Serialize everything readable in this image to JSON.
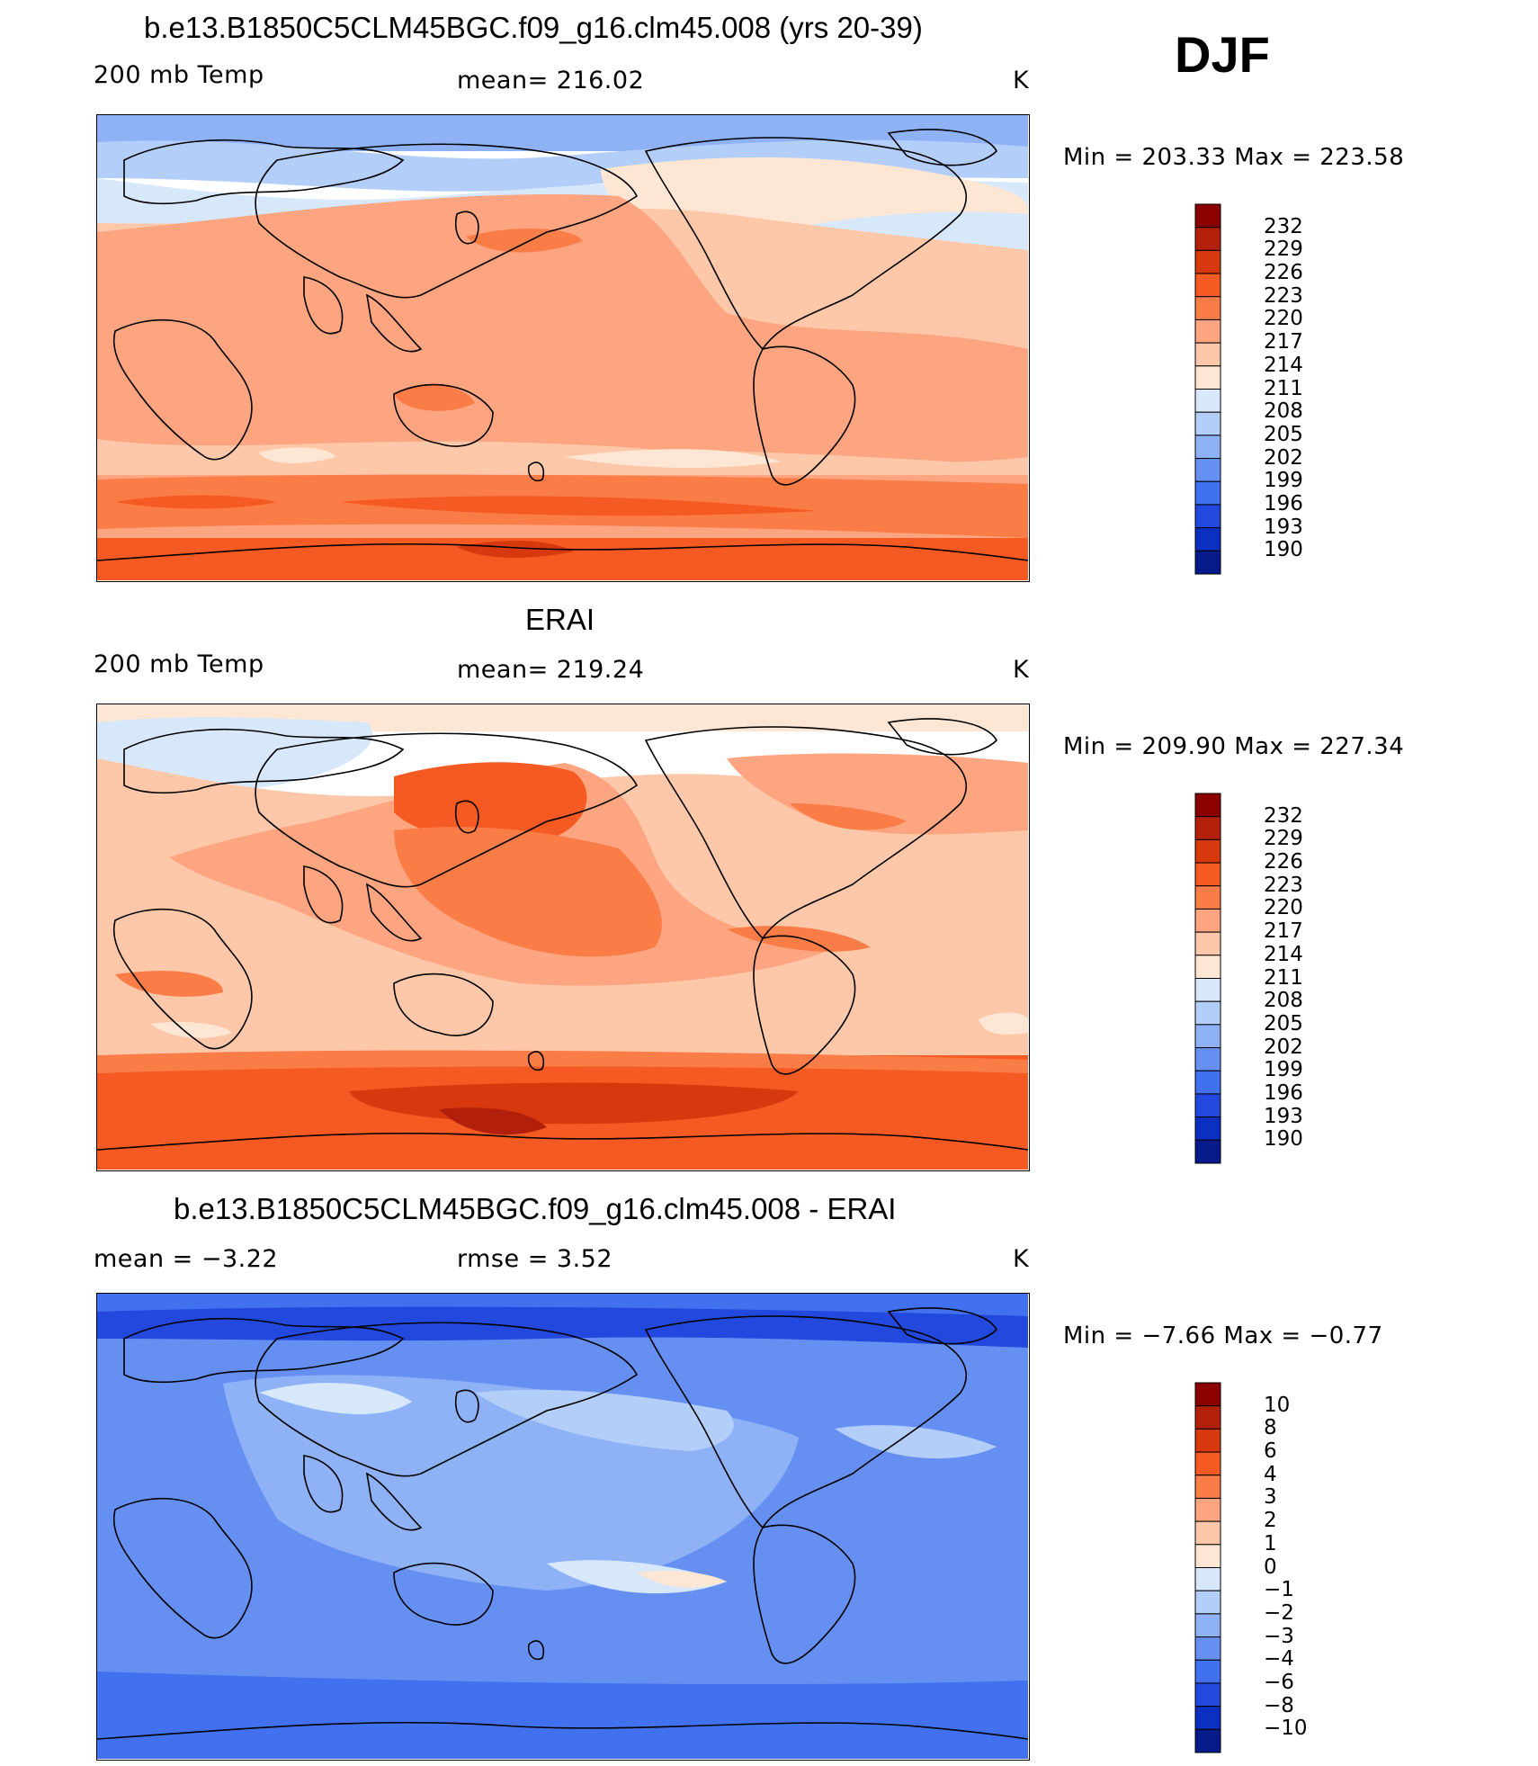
{
  "season": "DJF",
  "panels": [
    {
      "title": "b.e13.B1850C5CLM45BGC.f09_g16.clm45.008 (yrs 20-39)",
      "left_label": "200 mb Temp",
      "center_label": "mean= 216.02",
      "units": "K",
      "min_max": "Min = 203.33 Max = 223.58",
      "scheme": "model",
      "colorbar": {
        "labels": [
          "232",
          "229",
          "226",
          "223",
          "220",
          "217",
          "214",
          "211",
          "208",
          "205",
          "202",
          "199",
          "196",
          "193",
          "190"
        ]
      }
    },
    {
      "title": "ERAI",
      "left_label": "200 mb Temp",
      "center_label": "mean= 219.24",
      "units": "K",
      "min_max": "Min = 209.90 Max = 227.34",
      "scheme": "obs",
      "colorbar": {
        "labels": [
          "232",
          "229",
          "226",
          "223",
          "220",
          "217",
          "214",
          "211",
          "208",
          "205",
          "202",
          "199",
          "196",
          "193",
          "190"
        ]
      }
    },
    {
      "title": "b.e13.B1850C5CLM45BGC.f09_g16.clm45.008 - ERAI",
      "left_label": "mean = −3.22",
      "center_label": "rmse = 3.52",
      "units": "K",
      "min_max": "Min = −7.66 Max = −0.77",
      "scheme": "diff",
      "colorbar": {
        "labels": [
          "10",
          "8",
          "6",
          "4",
          "3",
          "2",
          "1",
          "0",
          "−1",
          "−2",
          "−3",
          "−4",
          "−6",
          "−8",
          "−10"
        ]
      }
    }
  ],
  "colors": {
    "colorbar_top_to_bottom": [
      "#8b0000",
      "#b2200c",
      "#d8380e",
      "#f55a22",
      "#fa7d47",
      "#fca580",
      "#fdc8aa",
      "#fde7d4",
      "#d7e8fb",
      "#b4cefa",
      "#8fb2f7",
      "#6590f2",
      "#4171ee",
      "#2248de",
      "#0b2fc1",
      "#061a8a"
    ],
    "land_outline": "#000000"
  }
}
